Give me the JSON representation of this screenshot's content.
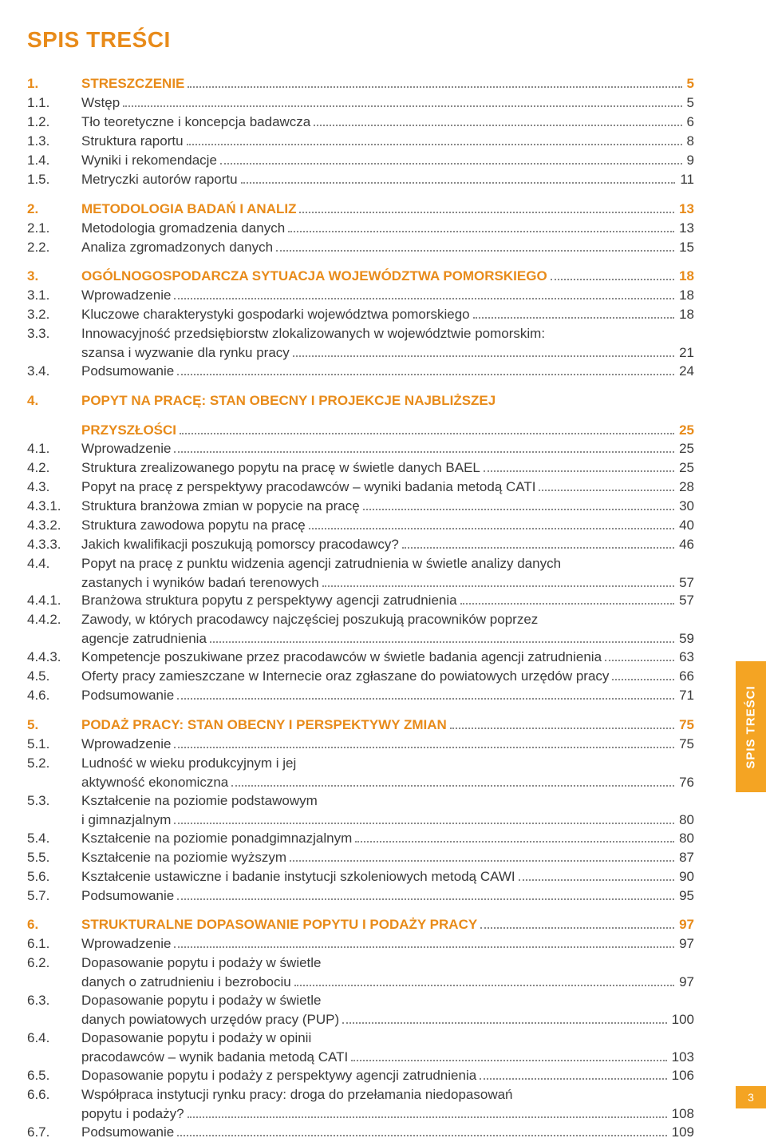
{
  "title": "SPIS TREŚCI",
  "side_tab": "SPIS TREŚCI",
  "page_number": "3",
  "colors": {
    "accent": "#e88b1a",
    "tab": "#f4a423",
    "text": "#3a3a3a"
  },
  "entries": [
    {
      "num": "1.",
      "label": "Streszczenie",
      "page": "5",
      "chapter": true
    },
    {
      "num": "1.1.",
      "label": "Wstęp",
      "page": "5"
    },
    {
      "num": "1.2.",
      "label": "Tło teoretyczne i koncepcja badawcza",
      "page": "6"
    },
    {
      "num": "1.3.",
      "label": "Struktura raportu",
      "page": "8"
    },
    {
      "num": "1.4.",
      "label": "Wyniki i rekomendacje",
      "page": "9"
    },
    {
      "num": "1.5.",
      "label": "Metryczki autorów raportu",
      "page": "11"
    },
    {
      "num": "2.",
      "label": "Metodologia badań i analiz",
      "page": "13",
      "chapter": true
    },
    {
      "num": "2.1.",
      "label": "Metodologia gromadzenia danych",
      "page": "13"
    },
    {
      "num": "2.2.",
      "label": "Analiza zgromadzonych danych",
      "page": "15"
    },
    {
      "num": "3.",
      "label": "Ogólnogospodarcza sytuacja województwa pomorskiego",
      "page": "18",
      "chapter": true
    },
    {
      "num": "3.1.",
      "label": "Wprowadzenie",
      "page": "18"
    },
    {
      "num": "3.2.",
      "label": "Kluczowe charakterystyki gospodarki województwa pomorskiego",
      "page": "18"
    },
    {
      "num": "3.3.",
      "label": "Innowacyjność przedsiębiorstw zlokalizowanych w województwie pomorskim:",
      "cont": "szansa i wyzwanie dla rynku pracy",
      "page": "21"
    },
    {
      "num": "3.4.",
      "label": "Podsumowanie",
      "page": "24"
    },
    {
      "num": "4.",
      "label": "Popyt na pracę: stan obecny i projekcje najbliższej",
      "cont": "przyszłości",
      "page": "25",
      "chapter": true
    },
    {
      "num": "4.1.",
      "label": "Wprowadzenie",
      "page": "25"
    },
    {
      "num": "4.2.",
      "label": "Struktura zrealizowanego popytu na pracę w świetle danych BAEL",
      "page": "25"
    },
    {
      "num": "4.3.",
      "label": "Popyt na pracę z perspektywy pracodawców – wyniki badania metodą CATI",
      "page": "28"
    },
    {
      "num": "4.3.1.",
      "label": "Struktura branżowa zmian w popycie na pracę",
      "page": "30"
    },
    {
      "num": "4.3.2.",
      "label": "Struktura zawodowa popytu na pracę",
      "page": "40"
    },
    {
      "num": "4.3.3.",
      "label": "Jakich kwalifikacji poszukują pomorscy pracodawcy?",
      "page": "46"
    },
    {
      "num": "4.4.",
      "label": "Popyt na pracę z punktu widzenia agencji zatrudnienia w świetle analizy danych",
      "cont": "zastanych i wyników badań terenowych",
      "page": "57"
    },
    {
      "num": "4.4.1.",
      "label": "Branżowa struktura popytu z perspektywy agencji zatrudnienia",
      "page": "57"
    },
    {
      "num": "4.4.2.",
      "label": "Zawody, w których pracodawcy najczęściej poszukują pracowników poprzez",
      "cont": "agencje zatrudnienia",
      "page": "59"
    },
    {
      "num": "4.4.3.",
      "label": "Kompetencje poszukiwane przez pracodawców w świetle badania agencji zatrudnienia",
      "page": "63"
    },
    {
      "num": "4.5.",
      "label": "Oferty pracy zamieszczane w Internecie oraz zgłaszane do powiatowych urzędów pracy",
      "page": "66"
    },
    {
      "num": "4.6.",
      "label": "Podsumowanie",
      "page": "71"
    },
    {
      "num": "5.",
      "label": "Podaż pracy: stan obecny i perspektywy zmian",
      "page": "75",
      "chapter": true
    },
    {
      "num": "5.1.",
      "label": "Wprowadzenie",
      "page": "75"
    },
    {
      "num": "5.2.",
      "label": "Ludność w wieku produkcyjnym i jej",
      "cont": "aktywność ekonomiczna",
      "page": "76"
    },
    {
      "num": "5.3.",
      "label": "Kształcenie na poziomie podstawowym",
      "cont": "i gimnazjalnym",
      "page": "80"
    },
    {
      "num": "5.4.",
      "label": "Kształcenie na poziomie ponadgimnazjalnym",
      "page": "80"
    },
    {
      "num": "5.5.",
      "label": "Kształcenie na poziomie wyższym",
      "page": "87"
    },
    {
      "num": "5.6.",
      "label": "Kształcenie ustawiczne i badanie instytucji szkoleniowych metodą CAWI",
      "page": "90"
    },
    {
      "num": "5.7.",
      "label": "Podsumowanie",
      "page": "95"
    },
    {
      "num": "6.",
      "label": "Strukturalne dopasowanie popytu i podaży pracy",
      "page": "97",
      "chapter": true
    },
    {
      "num": "6.1.",
      "label": "Wprowadzenie",
      "page": "97"
    },
    {
      "num": "6.2.",
      "label": "Dopasowanie popytu i podaży w świetle",
      "cont": "danych o zatrudnieniu i bezrobociu",
      "page": "97"
    },
    {
      "num": "6.3.",
      "label": "Dopasowanie popytu i podaży w świetle",
      "cont": "danych powiatowych urzędów pracy (PUP)",
      "page": "100"
    },
    {
      "num": "6.4.",
      "label": "Dopasowanie popytu i podaży w opinii",
      "cont": "pracodawców – wynik badania metodą CATI",
      "page": "103"
    },
    {
      "num": "6.5.",
      "label": "Dopasowanie popytu i podaży z perspektywy agencji zatrudnienia",
      "page": "106"
    },
    {
      "num": "6.6.",
      "label": "Współpraca instytucji rynku pracy: droga do przełamania niedopasowań",
      "cont": "popytu i podaży?",
      "page": "108"
    },
    {
      "num": "6.7.",
      "label": "Podsumowanie",
      "page": "109"
    }
  ]
}
